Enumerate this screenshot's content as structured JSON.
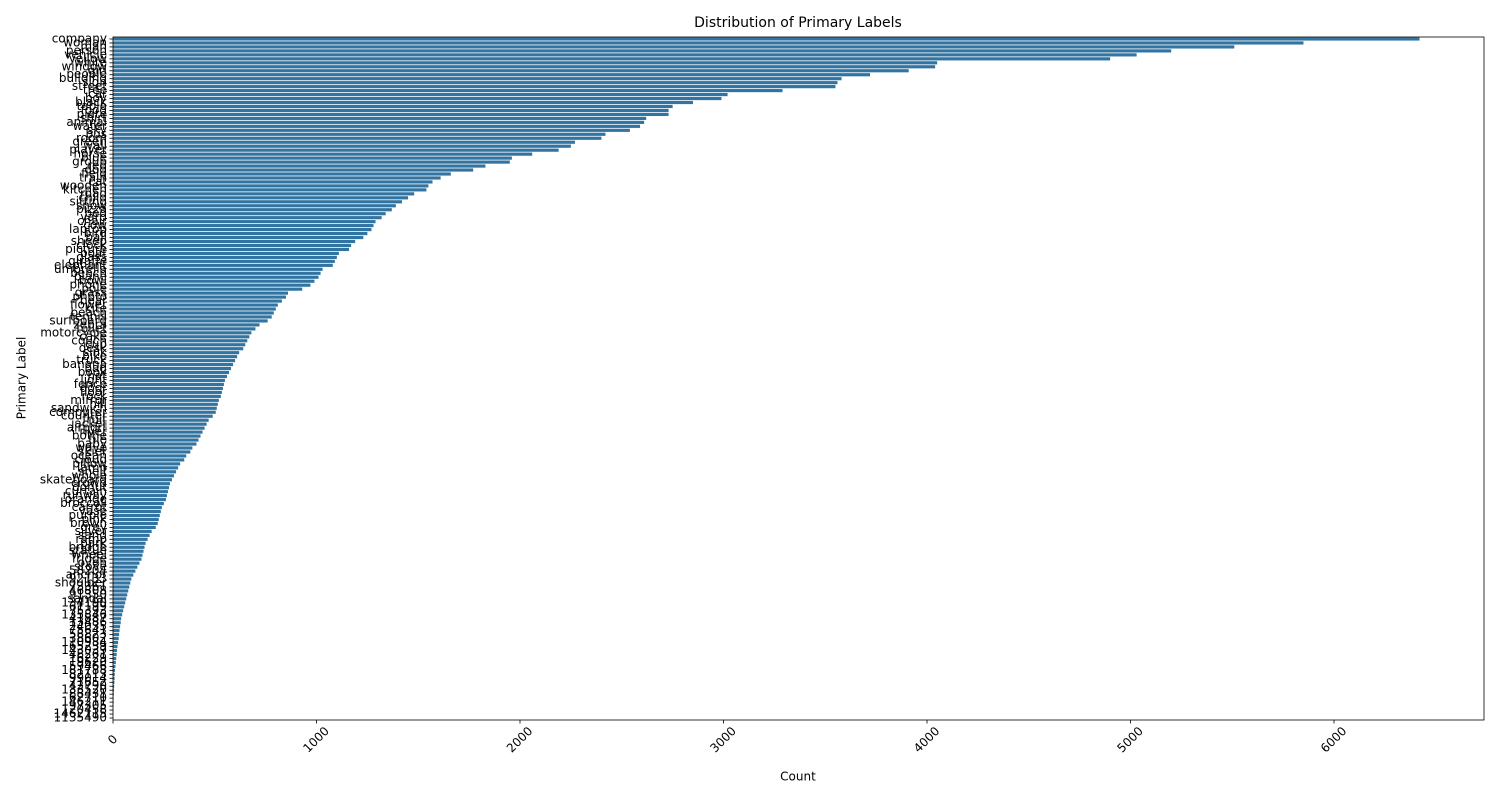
{
  "chart_data": {
    "type": "barh",
    "title": "Distribution of Primary Labels",
    "x_label": "Count",
    "y_label": "Primary Label",
    "color": "#3274a1",
    "grid": false,
    "xlim": [
      0,
      6737
    ],
    "xticks": [
      0,
      1000,
      2000,
      3000,
      4000,
      5000,
      6000
    ],
    "categories": [
      "company",
      "woman",
      "man",
      "person",
      "vehicle",
      "yellow",
      "white",
      "window",
      "girl",
      "people",
      "building",
      "sign",
      "street",
      "tree",
      "car",
      "boy",
      "black",
      "table",
      "food",
      "plate",
      "shirt",
      "animal",
      "water",
      "sky",
      "bus",
      "room",
      "green",
      "wall",
      "player",
      "horse",
      "blue",
      "group",
      "red",
      "dog",
      "field",
      "train",
      "cat",
      "wooden",
      "kitchen",
      "road",
      "child",
      "sitting",
      "snow",
      "pizza",
      "bed",
      "yard",
      "chair",
      "cow",
      "laptop",
      "bird",
      "ball",
      "sheep",
      "clock",
      "picture",
      "boat",
      "glass",
      "giraffe",
      "elephant",
      "umbrella",
      "bench",
      "plane",
      "bowl",
      "phone",
      "pole",
      "grass",
      "photo",
      "bear",
      "flower",
      "kite",
      "beach",
      "tennis",
      "surfboard",
      "zebra",
      "toilet",
      "motorcycle",
      "cake",
      "couch",
      "cup",
      "desk",
      "sink",
      "bike",
      "truck",
      "banana",
      "bag",
      "book",
      "hat",
      "light",
      "fence",
      "door",
      "floor",
      "rock",
      "mirror",
      "hill",
      "sandwich",
      "computer",
      "counter",
      "fruit",
      "jacket",
      "airport",
      "river",
      "bottle",
      "tile",
      "baby",
      "wave",
      "skier",
      "ocean",
      "cloud",
      "pillow",
      "lamp",
      "shelf",
      "whole",
      "skateboard",
      "crowd",
      "donut",
      "curtain",
      "runway",
      "orange",
      "broccoli",
      "carrot",
      "vase",
      "purple",
      "pink",
      "brown",
      "grey",
      "silver",
      "sand",
      "ramp",
      "park",
      "bridge",
      "statue",
      "wheel",
      "fridge",
      "oven",
      "stove",
      "58204",
      "anchor",
      "92133",
      "shoulder",
      "73361",
      "46808",
      "91350",
      "sandal",
      "134190",
      "61199",
      "75393",
      "135846",
      "41887",
      "13486",
      "24035",
      "75641",
      "58823",
      "38602",
      "110984",
      "65239",
      "143039",
      "48261",
      "16229",
      "19620",
      "59466",
      "181788",
      "82113",
      "99014",
      "71652",
      "42790",
      "133520",
      "88431",
      "62710",
      "146211",
      "97305",
      "120458",
      "1462115",
      "1135490"
    ],
    "values": [
      6420,
      5850,
      5510,
      5200,
      5030,
      4900,
      4050,
      4040,
      3910,
      3720,
      3580,
      3560,
      3550,
      3290,
      3020,
      2990,
      2850,
      2750,
      2730,
      2730,
      2620,
      2610,
      2590,
      2540,
      2420,
      2400,
      2270,
      2250,
      2190,
      2060,
      1960,
      1950,
      1830,
      1770,
      1660,
      1610,
      1570,
      1550,
      1540,
      1480,
      1450,
      1420,
      1390,
      1370,
      1340,
      1320,
      1290,
      1280,
      1270,
      1250,
      1230,
      1190,
      1170,
      1160,
      1110,
      1100,
      1090,
      1080,
      1030,
      1020,
      1010,
      990,
      970,
      930,
      860,
      850,
      830,
      810,
      800,
      790,
      780,
      760,
      720,
      700,
      680,
      670,
      660,
      650,
      640,
      620,
      610,
      600,
      590,
      580,
      570,
      560,
      550,
      545,
      540,
      535,
      530,
      520,
      515,
      510,
      505,
      490,
      470,
      460,
      450,
      440,
      430,
      420,
      410,
      390,
      380,
      360,
      350,
      330,
      320,
      310,
      300,
      290,
      280,
      275,
      270,
      265,
      260,
      250,
      240,
      235,
      230,
      225,
      220,
      210,
      190,
      180,
      170,
      160,
      155,
      150,
      145,
      140,
      130,
      120,
      110,
      100,
      90,
      85,
      80,
      75,
      70,
      65,
      60,
      55,
      50,
      45,
      40,
      38,
      35,
      32,
      30,
      28,
      25,
      22,
      20,
      18,
      16,
      14,
      12,
      10,
      9,
      8,
      7,
      6,
      5,
      4,
      3,
      3,
      2,
      2,
      1,
      1
    ]
  }
}
